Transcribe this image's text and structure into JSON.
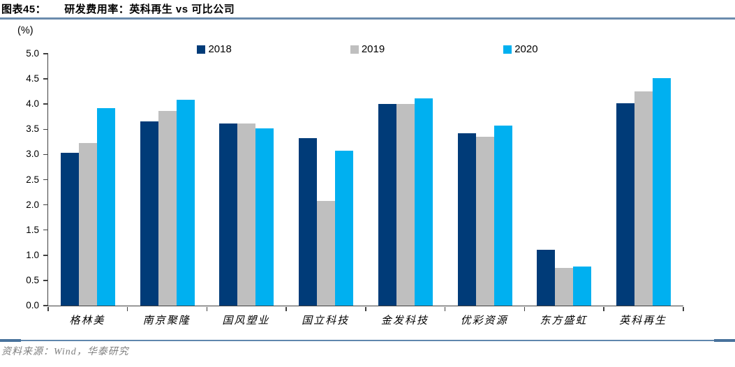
{
  "header": {
    "label": "图表45：",
    "title": "研发费用率：英科再生 vs 可比公司"
  },
  "source": "资料来源：Wind，华泰研究",
  "colors": {
    "title_rule": "#6b8cad",
    "source_rule": "#5f87ad",
    "axis": "#404040",
    "source_text": "#7f7f7f",
    "series_2018": "#003b78",
    "series_2019": "#bfbfbf",
    "series_2020": "#00b0f0"
  },
  "chart_data": {
    "type": "bar",
    "title": "研发费用率：英科再生 vs 可比公司",
    "categories": [
      "格林美",
      "南京聚隆",
      "国风塑业",
      "国立科技",
      "金发科技",
      "优彩资源",
      "东方盛虹",
      "英科再生"
    ],
    "series": [
      {
        "name": "2018",
        "color": "#003b78",
        "values": [
          3.03,
          3.66,
          3.62,
          3.32,
          4.01,
          3.42,
          1.11,
          4.02
        ]
      },
      {
        "name": "2019",
        "color": "#bfbfbf",
        "values": [
          3.23,
          3.87,
          3.62,
          2.08,
          4.0,
          3.35,
          0.75,
          4.25
        ]
      },
      {
        "name": "2020",
        "color": "#00b0f0",
        "values": [
          3.92,
          4.08,
          3.52,
          3.07,
          4.11,
          3.58,
          0.78,
          4.51
        ]
      }
    ],
    "xlabel": "",
    "ylabel": "(%)",
    "ylim": [
      0,
      5
    ],
    "ytick_step": 0.5,
    "ytick_decimals": 1,
    "grid": false,
    "legend_position": "top"
  }
}
